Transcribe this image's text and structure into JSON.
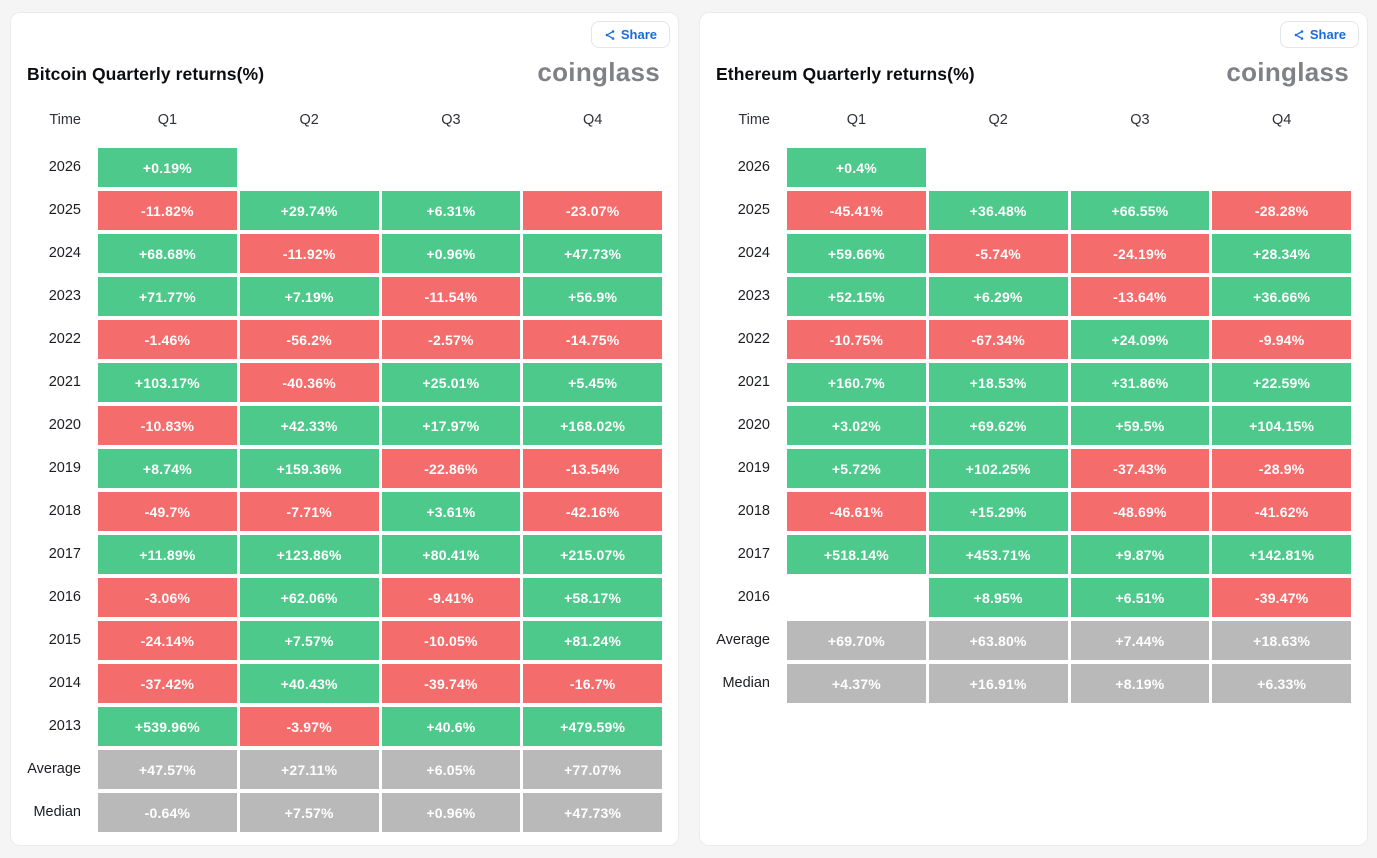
{
  "colors": {
    "positive": "#4ec98c",
    "negative": "#f56c6c",
    "stat_gray": "#b9b9b9",
    "accent_blue": "#1a6bdd",
    "page_background": "#f5f5f6"
  },
  "panels": [
    {
      "title": "Bitcoin Quarterly returns(%)",
      "share_label": "Share",
      "brand": "coinglass",
      "columns": [
        "Time",
        "Q1",
        "Q2",
        "Q3",
        "Q4"
      ],
      "rows": [
        {
          "label": "2026",
          "kind": "data",
          "values": [
            "+0.19%",
            null,
            null,
            null
          ]
        },
        {
          "label": "2025",
          "kind": "data",
          "values": [
            "-11.82%",
            "+29.74%",
            "+6.31%",
            "-23.07%"
          ]
        },
        {
          "label": "2024",
          "kind": "data",
          "values": [
            "+68.68%",
            "-11.92%",
            "+0.96%",
            "+47.73%"
          ]
        },
        {
          "label": "2023",
          "kind": "data",
          "values": [
            "+71.77%",
            "+7.19%",
            "-11.54%",
            "+56.9%"
          ]
        },
        {
          "label": "2022",
          "kind": "data",
          "values": [
            "-1.46%",
            "-56.2%",
            "-2.57%",
            "-14.75%"
          ]
        },
        {
          "label": "2021",
          "kind": "data",
          "values": [
            "+103.17%",
            "-40.36%",
            "+25.01%",
            "+5.45%"
          ]
        },
        {
          "label": "2020",
          "kind": "data",
          "values": [
            "-10.83%",
            "+42.33%",
            "+17.97%",
            "+168.02%"
          ]
        },
        {
          "label": "2019",
          "kind": "data",
          "values": [
            "+8.74%",
            "+159.36%",
            "-22.86%",
            "-13.54%"
          ]
        },
        {
          "label": "2018",
          "kind": "data",
          "values": [
            "-49.7%",
            "-7.71%",
            "+3.61%",
            "-42.16%"
          ]
        },
        {
          "label": "2017",
          "kind": "data",
          "values": [
            "+11.89%",
            "+123.86%",
            "+80.41%",
            "+215.07%"
          ]
        },
        {
          "label": "2016",
          "kind": "data",
          "values": [
            "-3.06%",
            "+62.06%",
            "-9.41%",
            "+58.17%"
          ]
        },
        {
          "label": "2015",
          "kind": "data",
          "values": [
            "-24.14%",
            "+7.57%",
            "-10.05%",
            "+81.24%"
          ]
        },
        {
          "label": "2014",
          "kind": "data",
          "values": [
            "-37.42%",
            "+40.43%",
            "-39.74%",
            "-16.7%"
          ]
        },
        {
          "label": "2013",
          "kind": "data",
          "values": [
            "+539.96%",
            "-3.97%",
            "+40.6%",
            "+479.59%"
          ]
        },
        {
          "label": "Average",
          "kind": "stat",
          "values": [
            "+47.57%",
            "+27.11%",
            "+6.05%",
            "+77.07%"
          ]
        },
        {
          "label": "Median",
          "kind": "stat",
          "values": [
            "-0.64%",
            "+7.57%",
            "+0.96%",
            "+47.73%"
          ]
        }
      ]
    },
    {
      "title": "Ethereum Quarterly returns(%)",
      "share_label": "Share",
      "brand": "coinglass",
      "columns": [
        "Time",
        "Q1",
        "Q2",
        "Q3",
        "Q4"
      ],
      "rows": [
        {
          "label": "2026",
          "kind": "data",
          "values": [
            "+0.4%",
            null,
            null,
            null
          ]
        },
        {
          "label": "2025",
          "kind": "data",
          "values": [
            "-45.41%",
            "+36.48%",
            "+66.55%",
            "-28.28%"
          ]
        },
        {
          "label": "2024",
          "kind": "data",
          "values": [
            "+59.66%",
            "-5.74%",
            "-24.19%",
            "+28.34%"
          ]
        },
        {
          "label": "2023",
          "kind": "data",
          "values": [
            "+52.15%",
            "+6.29%",
            "-13.64%",
            "+36.66%"
          ]
        },
        {
          "label": "2022",
          "kind": "data",
          "values": [
            "-10.75%",
            "-67.34%",
            "+24.09%",
            "-9.94%"
          ]
        },
        {
          "label": "2021",
          "kind": "data",
          "values": [
            "+160.7%",
            "+18.53%",
            "+31.86%",
            "+22.59%"
          ]
        },
        {
          "label": "2020",
          "kind": "data",
          "values": [
            "+3.02%",
            "+69.62%",
            "+59.5%",
            "+104.15%"
          ]
        },
        {
          "label": "2019",
          "kind": "data",
          "values": [
            "+5.72%",
            "+102.25%",
            "-37.43%",
            "-28.9%"
          ]
        },
        {
          "label": "2018",
          "kind": "data",
          "values": [
            "-46.61%",
            "+15.29%",
            "-48.69%",
            "-41.62%"
          ]
        },
        {
          "label": "2017",
          "kind": "data",
          "values": [
            "+518.14%",
            "+453.71%",
            "+9.87%",
            "+142.81%"
          ]
        },
        {
          "label": "2016",
          "kind": "data",
          "values": [
            null,
            "+8.95%",
            "+6.51%",
            "-39.47%"
          ]
        },
        {
          "label": "Average",
          "kind": "stat",
          "values": [
            "+69.70%",
            "+63.80%",
            "+7.44%",
            "+18.63%"
          ]
        },
        {
          "label": "Median",
          "kind": "stat",
          "values": [
            "+4.37%",
            "+16.91%",
            "+8.19%",
            "+6.33%"
          ]
        }
      ]
    }
  ],
  "chart_data": [
    {
      "type": "heatmap",
      "title": "Bitcoin Quarterly returns(%)",
      "units": "%",
      "columns": [
        "Q1",
        "Q2",
        "Q3",
        "Q4"
      ],
      "rows": [
        "2026",
        "2025",
        "2024",
        "2023",
        "2022",
        "2021",
        "2020",
        "2019",
        "2018",
        "2017",
        "2016",
        "2015",
        "2014",
        "2013"
      ],
      "values": [
        [
          0.19,
          null,
          null,
          null
        ],
        [
          -11.82,
          29.74,
          6.31,
          -23.07
        ],
        [
          68.68,
          -11.92,
          0.96,
          47.73
        ],
        [
          71.77,
          7.19,
          -11.54,
          56.9
        ],
        [
          -1.46,
          -56.2,
          -2.57,
          -14.75
        ],
        [
          103.17,
          -40.36,
          25.01,
          5.45
        ],
        [
          -10.83,
          42.33,
          17.97,
          168.02
        ],
        [
          8.74,
          159.36,
          -22.86,
          -13.54
        ],
        [
          -49.7,
          -7.71,
          3.61,
          -42.16
        ],
        [
          11.89,
          123.86,
          80.41,
          215.07
        ],
        [
          -3.06,
          62.06,
          -9.41,
          58.17
        ],
        [
          -24.14,
          7.57,
          -10.05,
          81.24
        ],
        [
          -37.42,
          40.43,
          -39.74,
          -16.7
        ],
        [
          539.96,
          -3.97,
          40.6,
          479.59
        ]
      ],
      "average": [
        47.57,
        27.11,
        6.05,
        77.07
      ],
      "median": [
        -0.64,
        7.57,
        0.96,
        47.73
      ],
      "legend": "green = positive return, red = negative return, gray = summary statistic"
    },
    {
      "type": "heatmap",
      "title": "Ethereum Quarterly returns(%)",
      "units": "%",
      "columns": [
        "Q1",
        "Q2",
        "Q3",
        "Q4"
      ],
      "rows": [
        "2026",
        "2025",
        "2024",
        "2023",
        "2022",
        "2021",
        "2020",
        "2019",
        "2018",
        "2017",
        "2016"
      ],
      "values": [
        [
          0.4,
          null,
          null,
          null
        ],
        [
          -45.41,
          36.48,
          66.55,
          -28.28
        ],
        [
          59.66,
          -5.74,
          -24.19,
          28.34
        ],
        [
          52.15,
          6.29,
          -13.64,
          36.66
        ],
        [
          -10.75,
          -67.34,
          24.09,
          -9.94
        ],
        [
          160.7,
          18.53,
          31.86,
          22.59
        ],
        [
          3.02,
          69.62,
          59.5,
          104.15
        ],
        [
          5.72,
          102.25,
          -37.43,
          -28.9
        ],
        [
          -46.61,
          15.29,
          -48.69,
          -41.62
        ],
        [
          518.14,
          453.71,
          9.87,
          142.81
        ],
        [
          null,
          8.95,
          6.51,
          -39.47
        ]
      ],
      "average": [
        69.7,
        63.8,
        7.44,
        18.63
      ],
      "median": [
        4.37,
        16.91,
        8.19,
        6.33
      ],
      "legend": "green = positive return, red = negative return, gray = summary statistic"
    }
  ]
}
